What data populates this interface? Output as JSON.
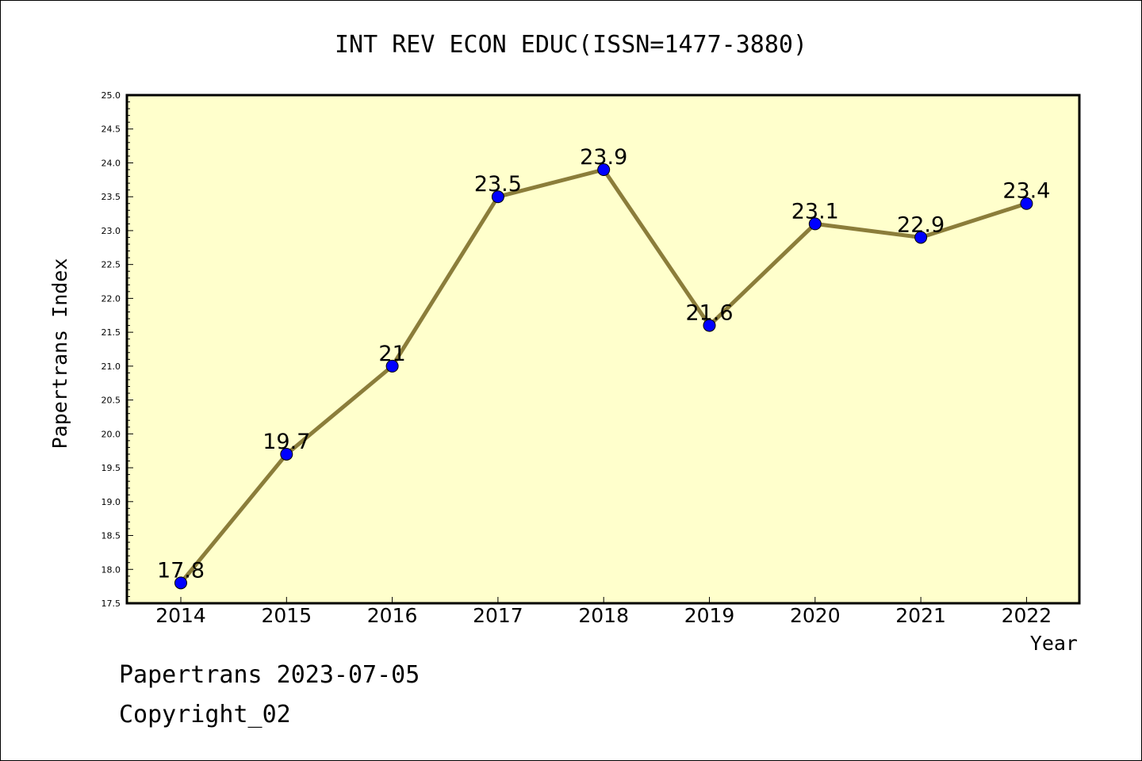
{
  "chart_data": {
    "type": "line",
    "title": "INT REV ECON EDUC(ISSN=1477-3880)",
    "xlabel": "Year",
    "ylabel": "Papertrans Index",
    "categories": [
      "2014",
      "2015",
      "2016",
      "2017",
      "2018",
      "2019",
      "2020",
      "2021",
      "2022"
    ],
    "series": [
      {
        "values": [
          17.8,
          19.7,
          21,
          23.5,
          23.9,
          21.6,
          23.1,
          22.9,
          23.4
        ],
        "data_labels": [
          "17.8",
          "19.7",
          "21",
          "23.5",
          "23.9",
          "21.6",
          "23.1",
          "22.9",
          "23.4"
        ]
      }
    ],
    "ylim": [
      17.5,
      25.0
    ],
    "yticks": [
      "17.5",
      "18.0",
      "18.5",
      "19.0",
      "19.5",
      "20.0",
      "20.5",
      "21.0",
      "21.5",
      "22.0",
      "22.5",
      "23.0",
      "23.5",
      "24.0",
      "24.5",
      "25.0"
    ],
    "grid": false,
    "legend": "none",
    "colors": {
      "plot_background": "#ffffcc",
      "line": "#8b7d3a",
      "marker": "#0000ff"
    }
  },
  "footer": {
    "line1": "Papertrans 2023-07-05",
    "line2": "Copyright_02"
  }
}
